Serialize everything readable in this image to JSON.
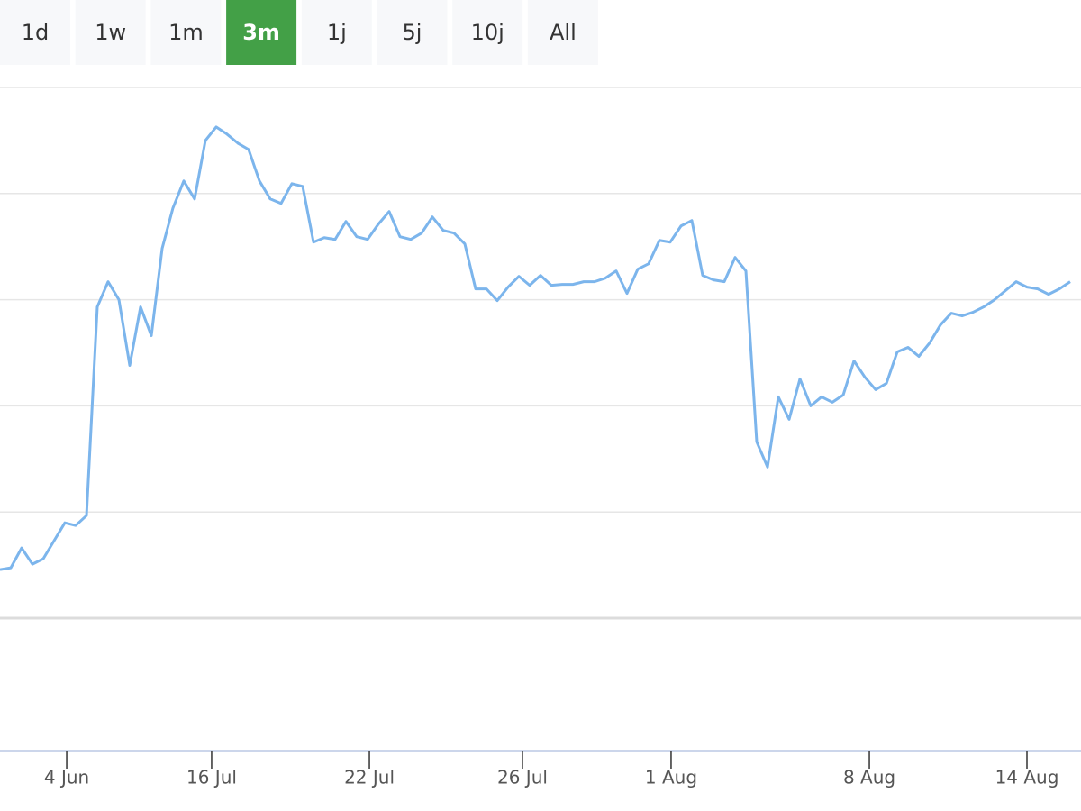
{
  "range_buttons": {
    "labels": [
      "1d",
      "1w",
      "1m",
      "3m",
      "1j",
      "5j",
      "10j",
      "All"
    ],
    "active": 3,
    "active_color": "#43a047"
  },
  "chart_data": {
    "type": "line",
    "series": [
      {
        "color": "#7cb5ec",
        "values": [
          54,
          56,
          78,
          60,
          66,
          86,
          106,
          103,
          114,
          346,
          374,
          354,
          281,
          346,
          314,
          411,
          456,
          486,
          466,
          531,
          546,
          538,
          528,
          521,
          486,
          466,
          461,
          483,
          480,
          418,
          423,
          421,
          441,
          424,
          421,
          438,
          452,
          424,
          421,
          428,
          446,
          431,
          428,
          416,
          366,
          366,
          353,
          368,
          380,
          370,
          381,
          370,
          371,
          371,
          374,
          374,
          378,
          386,
          361,
          388,
          394,
          420,
          418,
          436,
          442,
          381,
          376,
          374,
          401,
          386,
          196,
          168,
          246,
          221,
          266,
          236,
          246,
          240,
          248,
          286,
          268,
          254,
          261,
          296,
          301,
          291,
          306,
          326,
          339,
          336,
          340,
          346,
          354,
          364,
          374,
          368,
          366,
          360,
          366,
          374
        ]
      }
    ],
    "xlim": [
      0,
      100
    ],
    "xticks": [
      {
        "value": 6.17,
        "label": "4 Jun"
      },
      {
        "value": 19.58,
        "label": "16 Jul"
      },
      {
        "value": 34.17,
        "label": "22 Jul"
      },
      {
        "value": 48.33,
        "label": "26 Jul"
      },
      {
        "value": 62.08,
        "label": "1 Aug"
      },
      {
        "value": 80.42,
        "label": "8 Aug"
      },
      {
        "value": 95,
        "label": "14 Aug"
      }
    ],
    "ylim": [
      0,
      590
    ],
    "yticks": [
      0,
      118,
      236,
      354,
      472,
      590
    ],
    "grid": true
  }
}
